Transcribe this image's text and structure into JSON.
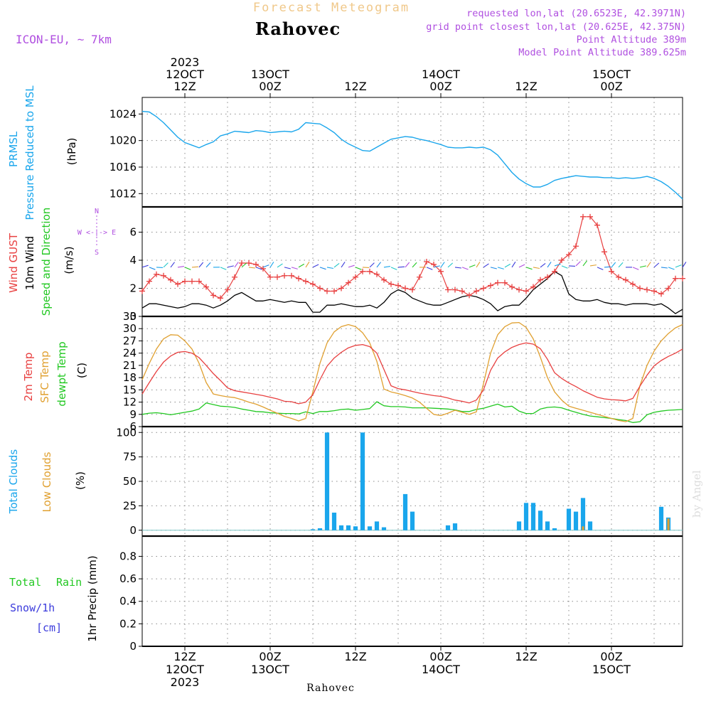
{
  "header": {
    "product": "Forecast Meteogram",
    "location": "Rahovec",
    "model": "ICON-EU, ~ 7km",
    "requested": "requested lon,lat (20.6523E, 42.3971N)",
    "grid_point": "grid point closest lon,lat (20.625E, 42.375N)",
    "point_alt": "Point Altitude 389m",
    "model_alt": "Model Point Altitude 389.625m"
  },
  "footer": {
    "location": "Rahovec",
    "credit": "by Angel"
  },
  "colors": {
    "cyan": "#1aa6ec",
    "red": "#e84040",
    "orange": "#e0a030",
    "green": "#22c822",
    "blue": "#3b3bdc",
    "purple": "#b050e0",
    "black": "#000000"
  },
  "time_axis": {
    "top": [
      {
        "t": 6,
        "lines": [
          "2023",
          "12OCT",
          "12Z"
        ]
      },
      {
        "t": 18,
        "lines": [
          "13OCT",
          "00Z"
        ]
      },
      {
        "t": 30,
        "lines": [
          "12Z"
        ]
      },
      {
        "t": 42,
        "lines": [
          "14OCT",
          "00Z"
        ]
      },
      {
        "t": 54,
        "lines": [
          "12Z"
        ]
      },
      {
        "t": 66,
        "lines": [
          "15OCT",
          "00Z"
        ]
      }
    ],
    "bottom": [
      {
        "t": 6,
        "lines": [
          "12Z",
          "12OCT",
          "2023"
        ]
      },
      {
        "t": 18,
        "lines": [
          "00Z",
          "13OCT"
        ]
      },
      {
        "t": 30,
        "lines": [
          "12Z"
        ]
      },
      {
        "t": 42,
        "lines": [
          "00Z",
          "14OCT"
        ]
      },
      {
        "t": 54,
        "lines": [
          "12Z"
        ]
      },
      {
        "t": 66,
        "lines": [
          "00Z",
          "15OCT"
        ]
      }
    ]
  },
  "panel_labels": {
    "pressure": [
      "PRMSL",
      "Pressure Reduced to MSL",
      "(hPa)"
    ],
    "wind": [
      "Wind GUST",
      "10m Wind",
      "Speed and Direction",
      "(m/s)"
    ],
    "compass": [
      "N",
      "W <-|-> E",
      "S"
    ],
    "temp": [
      "2m Temp",
      "SFC Temp",
      "dewpt Temp",
      "(C)"
    ],
    "clouds": [
      "Total Clouds",
      "Low Clouds",
      "(%)"
    ],
    "precip": [
      "Total",
      "Rain",
      "Snow/1h",
      "[cm]",
      "1hr Precip (mm)"
    ]
  },
  "chart_data": [
    {
      "type": "line",
      "title": "PRMSL Pressure Reduced to MSL",
      "ylabel": "(hPa)",
      "ylim": [
        1010,
        1026.5
      ],
      "yticks": [
        1012,
        1016,
        1020,
        1024
      ],
      "x": [
        0,
        1,
        2,
        3,
        4,
        5,
        6,
        7,
        8,
        9,
        10,
        11,
        12,
        13,
        14,
        15,
        16,
        17,
        18,
        19,
        20,
        21,
        22,
        23,
        24,
        25,
        26,
        27,
        28,
        29,
        30,
        31,
        32,
        33,
        34,
        35,
        36,
        37,
        38,
        39,
        40,
        41,
        42,
        43,
        44,
        45,
        46,
        47,
        48,
        49,
        50,
        51,
        52,
        53,
        54,
        55,
        56,
        57,
        58,
        59,
        60,
        61,
        62,
        63,
        64,
        65,
        66,
        67,
        68,
        69,
        70,
        71,
        72,
        73,
        74,
        75,
        76
      ],
      "series": [
        {
          "name": "PRMSL",
          "values": [
            1024.4,
            1024.3,
            1023.6,
            1022.7,
            1021.6,
            1020.5,
            1019.7,
            1019.3,
            1018.9,
            1019.4,
            1019.8,
            1020.7,
            1021.0,
            1021.4,
            1021.3,
            1021.2,
            1021.5,
            1021.4,
            1021.2,
            1021.3,
            1021.4,
            1021.3,
            1021.7,
            1022.7,
            1022.6,
            1022.5,
            1021.9,
            1021.2,
            1020.2,
            1019.5,
            1019.0,
            1018.5,
            1018.4,
            1019.0,
            1019.6,
            1020.2,
            1020.4,
            1020.6,
            1020.5,
            1020.2,
            1020.0,
            1019.7,
            1019.4,
            1019.0,
            1018.9,
            1018.9,
            1019.0,
            1018.9,
            1019.0,
            1018.6,
            1017.8,
            1016.5,
            1015.2,
            1014.2,
            1013.5,
            1013.0,
            1013.0,
            1013.4,
            1014.0,
            1014.3,
            1014.5,
            1014.7,
            1014.6,
            1014.5,
            1014.5,
            1014.4,
            1014.4,
            1014.3,
            1014.4,
            1014.3,
            1014.4,
            1014.6,
            1014.3,
            1013.8,
            1013.1,
            1012.2,
            1011.2
          ]
        }
      ]
    },
    {
      "type": "line",
      "title": "Wind GUST / 10m Wind",
      "ylabel": "(m/s)",
      "ylim": [
        0,
        7.8
      ],
      "yticks": [
        0,
        2,
        4,
        6
      ],
      "x": [
        0,
        1,
        2,
        3,
        4,
        5,
        6,
        7,
        8,
        9,
        10,
        11,
        12,
        13,
        14,
        15,
        16,
        17,
        18,
        19,
        20,
        21,
        22,
        23,
        24,
        25,
        26,
        27,
        28,
        29,
        30,
        31,
        32,
        33,
        34,
        35,
        36,
        37,
        38,
        39,
        40,
        41,
        42,
        43,
        44,
        45,
        46,
        47,
        48,
        49,
        50,
        51,
        52,
        53,
        54,
        55,
        56,
        57,
        58,
        59,
        60,
        61,
        62,
        63,
        64,
        65,
        66,
        67,
        68,
        69,
        70,
        71,
        72,
        73,
        74,
        75,
        76
      ],
      "series": [
        {
          "name": "Wind GUST",
          "values": [
            1.8,
            2.5,
            3.0,
            2.9,
            2.6,
            2.3,
            2.5,
            2.5,
            2.5,
            2.1,
            1.5,
            1.3,
            1.9,
            2.8,
            3.8,
            3.8,
            3.7,
            3.4,
            2.8,
            2.8,
            2.9,
            2.9,
            2.7,
            2.5,
            2.3,
            2.0,
            1.8,
            1.8,
            2.0,
            2.4,
            2.8,
            3.2,
            3.2,
            3.0,
            2.6,
            2.3,
            2.2,
            2.0,
            1.9,
            2.8,
            3.9,
            3.7,
            3.2,
            1.9,
            1.9,
            1.8,
            1.5,
            1.8,
            2.0,
            2.2,
            2.4,
            2.4,
            2.1,
            1.9,
            1.8,
            2.1,
            2.6,
            2.8,
            3.2,
            4.0,
            4.4,
            5.0,
            7.1,
            7.1,
            6.5,
            4.6,
            3.2,
            2.8,
            2.6,
            2.3,
            2.0,
            1.9,
            1.8,
            1.6,
            2.0,
            2.7,
            2.7
          ]
        },
        {
          "name": "10m Wind",
          "values": [
            0.6,
            0.9,
            0.9,
            0.8,
            0.7,
            0.6,
            0.7,
            0.9,
            0.9,
            0.8,
            0.6,
            0.8,
            1.1,
            1.5,
            1.7,
            1.4,
            1.1,
            1.1,
            1.2,
            1.1,
            1.0,
            1.1,
            1.0,
            1.0,
            0.3,
            0.3,
            0.8,
            0.8,
            0.9,
            0.8,
            0.7,
            0.7,
            0.8,
            0.6,
            1.0,
            1.6,
            1.9,
            1.7,
            1.3,
            1.1,
            0.9,
            0.8,
            0.8,
            1.0,
            1.2,
            1.4,
            1.5,
            1.4,
            1.2,
            0.9,
            0.4,
            0.7,
            0.8,
            0.8,
            1.3,
            1.9,
            2.3,
            2.7,
            3.2,
            2.9,
            1.6,
            1.2,
            1.1,
            1.1,
            1.2,
            1.0,
            0.9,
            0.9,
            0.8,
            0.9,
            0.9,
            0.9,
            0.8,
            0.9,
            0.6,
            0.2,
            0.5
          ]
        }
      ]
    },
    {
      "type": "line",
      "title": "2m Temp / SFC Temp / dewpt Temp",
      "ylabel": "(C)",
      "ylim": [
        6,
        33
      ],
      "yticks": [
        6,
        9,
        12,
        15,
        18,
        21,
        24,
        27,
        30,
        33
      ],
      "x": [
        0,
        1,
        2,
        3,
        4,
        5,
        6,
        7,
        8,
        9,
        10,
        11,
        12,
        13,
        14,
        15,
        16,
        17,
        18,
        19,
        20,
        21,
        22,
        23,
        24,
        25,
        26,
        27,
        28,
        29,
        30,
        31,
        32,
        33,
        34,
        35,
        36,
        37,
        38,
        39,
        40,
        41,
        42,
        43,
        44,
        45,
        46,
        47,
        48,
        49,
        50,
        51,
        52,
        53,
        54,
        55,
        56,
        57,
        58,
        59,
        60,
        61,
        62,
        63,
        64,
        65,
        66,
        67,
        68,
        69,
        70,
        71,
        72,
        73,
        74,
        75,
        76
      ],
      "series": [
        {
          "name": "2m Temp",
          "values": [
            14.0,
            16.8,
            19.5,
            21.8,
            23.3,
            24.2,
            24.4,
            24.0,
            22.9,
            21.0,
            19.0,
            17.3,
            15.5,
            14.8,
            14.5,
            14.2,
            13.9,
            13.6,
            13.2,
            12.8,
            12.2,
            12.1,
            11.6,
            12.0,
            13.8,
            17.5,
            20.8,
            22.8,
            24.2,
            25.3,
            25.9,
            26.1,
            25.6,
            24.0,
            20.0,
            16.0,
            15.3,
            15.0,
            14.6,
            14.2,
            13.9,
            13.6,
            13.4,
            13.0,
            12.5,
            12.2,
            11.8,
            12.5,
            15.0,
            19.8,
            22.8,
            24.3,
            25.4,
            26.1,
            26.5,
            26.2,
            25.1,
            22.5,
            19.2,
            17.8,
            16.7,
            15.8,
            14.8,
            14.0,
            13.2,
            12.8,
            12.6,
            12.5,
            12.3,
            12.9,
            15.9,
            18.6,
            20.9,
            22.2,
            23.2,
            24.0,
            25.0
          ]
        },
        {
          "name": "SFC Temp",
          "values": [
            17.5,
            21.5,
            25.0,
            27.5,
            28.5,
            28.4,
            27.0,
            25.0,
            21.5,
            16.8,
            14.0,
            13.6,
            13.3,
            13.1,
            12.6,
            12.0,
            11.5,
            10.8,
            10.0,
            9.3,
            8.5,
            8.0,
            7.4,
            8.0,
            14.5,
            21.5,
            26.5,
            29.2,
            30.5,
            31.0,
            30.5,
            29.0,
            26.5,
            22.0,
            15.2,
            14.5,
            14.1,
            13.6,
            13.0,
            12.0,
            10.5,
            9.0,
            8.7,
            9.3,
            10.0,
            9.5,
            9.0,
            9.6,
            16.5,
            24.0,
            28.5,
            30.5,
            31.4,
            31.5,
            30.3,
            27.5,
            23.0,
            18.0,
            14.5,
            12.5,
            11.0,
            10.5,
            10.0,
            9.5,
            9.0,
            8.5,
            8.0,
            7.5,
            7.2,
            8.0,
            16.0,
            21.0,
            24.5,
            27.0,
            28.8,
            30.2,
            31.0
          ]
        },
        {
          "name": "dewpt Temp",
          "values": [
            9.0,
            9.3,
            9.4,
            9.2,
            8.9,
            9.2,
            9.5,
            9.8,
            10.3,
            11.8,
            11.4,
            11.0,
            10.9,
            10.7,
            10.3,
            10.0,
            9.7,
            9.6,
            9.4,
            9.3,
            9.2,
            9.2,
            9.1,
            9.6,
            9.2,
            9.7,
            9.7,
            9.9,
            10.2,
            10.3,
            10.0,
            10.2,
            10.4,
            12.1,
            11.1,
            10.9,
            10.9,
            10.8,
            10.6,
            10.6,
            10.6,
            10.5,
            10.4,
            10.3,
            10.1,
            9.7,
            9.7,
            10.2,
            10.5,
            11.0,
            11.5,
            10.8,
            11.0,
            9.8,
            9.2,
            9.2,
            10.3,
            10.7,
            10.8,
            10.6,
            10.0,
            9.5,
            9.0,
            8.6,
            8.4,
            8.2,
            8.0,
            7.7,
            7.5,
            7.0,
            7.2,
            8.9,
            9.5,
            9.8,
            10.0,
            10.1,
            10.2
          ]
        }
      ]
    },
    {
      "type": "bar",
      "title": "Total Clouds / Low Clouds",
      "ylabel": "(%)",
      "ylim": [
        -6,
        106
      ],
      "yticks": [
        0,
        25,
        50,
        75,
        100
      ],
      "x": [
        20,
        21,
        22,
        23,
        24,
        25,
        26,
        27,
        28,
        29,
        30,
        31,
        32,
        33,
        34,
        35,
        36,
        37,
        38,
        39,
        40,
        41,
        42,
        43,
        44,
        45,
        46,
        47,
        48,
        49,
        50,
        51,
        52,
        53,
        54,
        55,
        56,
        57,
        58,
        59,
        60,
        61,
        62,
        63,
        64,
        65,
        66,
        67,
        68,
        69,
        70,
        71,
        72,
        73,
        74,
        75,
        76
      ],
      "series": [
        {
          "name": "Total Clouds",
          "values": [
            0,
            0,
            0,
            0,
            1,
            2,
            100,
            18,
            5,
            5,
            4,
            100,
            4,
            9,
            3,
            0,
            0,
            37,
            19,
            0,
            0,
            0,
            0,
            5,
            7,
            0,
            0,
            0,
            0,
            0,
            0,
            0,
            0,
            9,
            28,
            28,
            20,
            9,
            2,
            0,
            22,
            19,
            33,
            9,
            0,
            0,
            0,
            0,
            0,
            0,
            0,
            0,
            0,
            24,
            13,
            0,
            0
          ]
        },
        {
          "name": "Low Clouds",
          "values": [
            0,
            0,
            0,
            0,
            0,
            0,
            0,
            0,
            0,
            0,
            0,
            0,
            0,
            0,
            0,
            0,
            0,
            0,
            0,
            0,
            0,
            0,
            0,
            0,
            0,
            0,
            0,
            0,
            0,
            0,
            0,
            0,
            0,
            0,
            0,
            0,
            0,
            0,
            0,
            0,
            0,
            0,
            4,
            0,
            0,
            0,
            0,
            0,
            0,
            0,
            0,
            0,
            0,
            0,
            12,
            0,
            0
          ]
        }
      ]
    },
    {
      "type": "bar",
      "title": "Total Rain / Snow 1h",
      "ylabel": "1hr Precip (mm)",
      "ylim": [
        0,
        0.98
      ],
      "yticks": [
        0,
        0.2,
        0.4,
        0.6,
        0.8
      ],
      "x": [],
      "series": [
        {
          "name": "Total Rain",
          "values": []
        },
        {
          "name": "Snow/1h",
          "values": []
        }
      ]
    }
  ]
}
